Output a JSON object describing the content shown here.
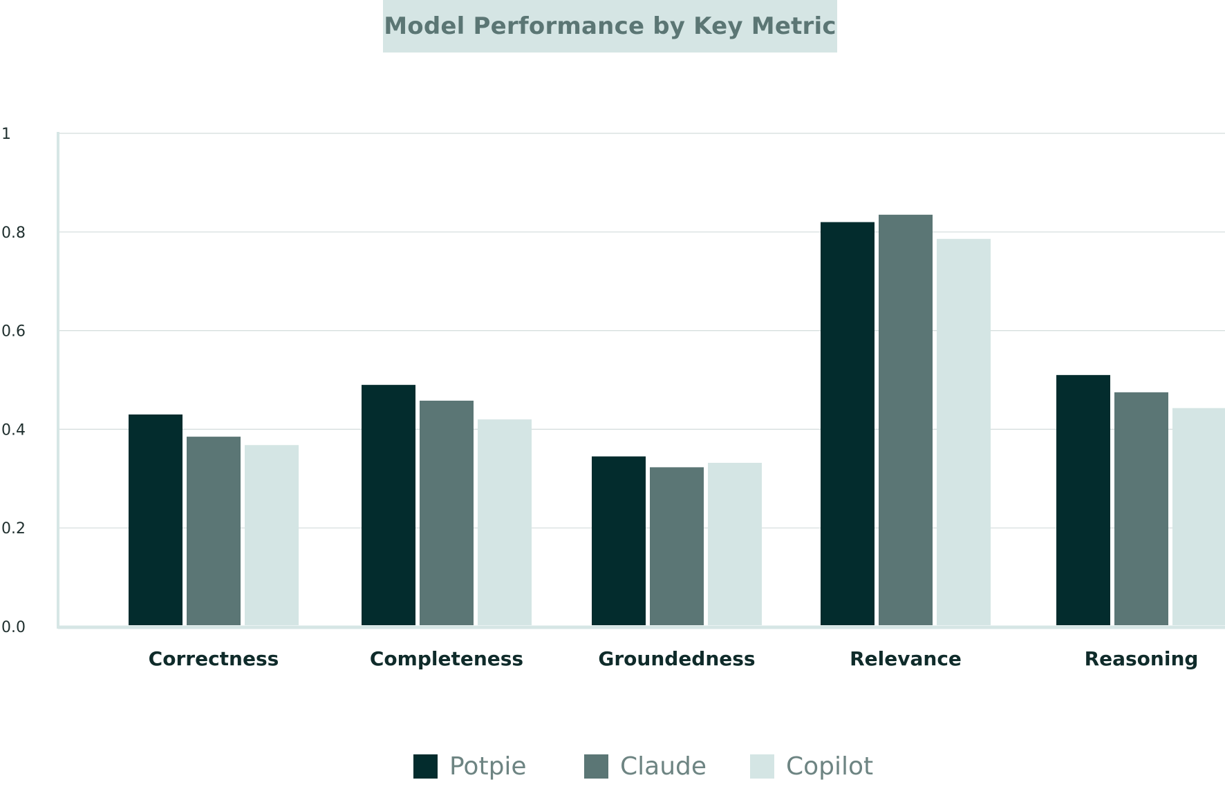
{
  "chart_data": {
    "type": "bar",
    "title": "Model Performance by Key Metric",
    "xlabel": "",
    "ylabel": "",
    "ylim": [
      0,
      1
    ],
    "yticks": [
      {
        "value": 0,
        "label": "0.0"
      },
      {
        "value": 0.2,
        "label": "0.2"
      },
      {
        "value": 0.4,
        "label": "0.4"
      },
      {
        "value": 0.6,
        "label": "0.6"
      },
      {
        "value": 0.8,
        "label": "0.8"
      },
      {
        "value": 1,
        "label": "1"
      }
    ],
    "grid": true,
    "legend_position": "bottom",
    "categories": [
      "Correctness",
      "Completeness",
      "Groundedness",
      "Relevance",
      "Reasoning"
    ],
    "series": [
      {
        "name": "Potpie",
        "color": "#032c2d",
        "values": [
          0.43,
          0.49,
          0.345,
          0.82,
          0.51
        ]
      },
      {
        "name": "Claude",
        "color": "#5b7675",
        "values": [
          0.385,
          0.458,
          0.323,
          0.835,
          0.475
        ]
      },
      {
        "name": "Copilot",
        "color": "#d4e5e4",
        "values": [
          0.368,
          0.42,
          0.332,
          0.786,
          0.443
        ]
      }
    ]
  }
}
